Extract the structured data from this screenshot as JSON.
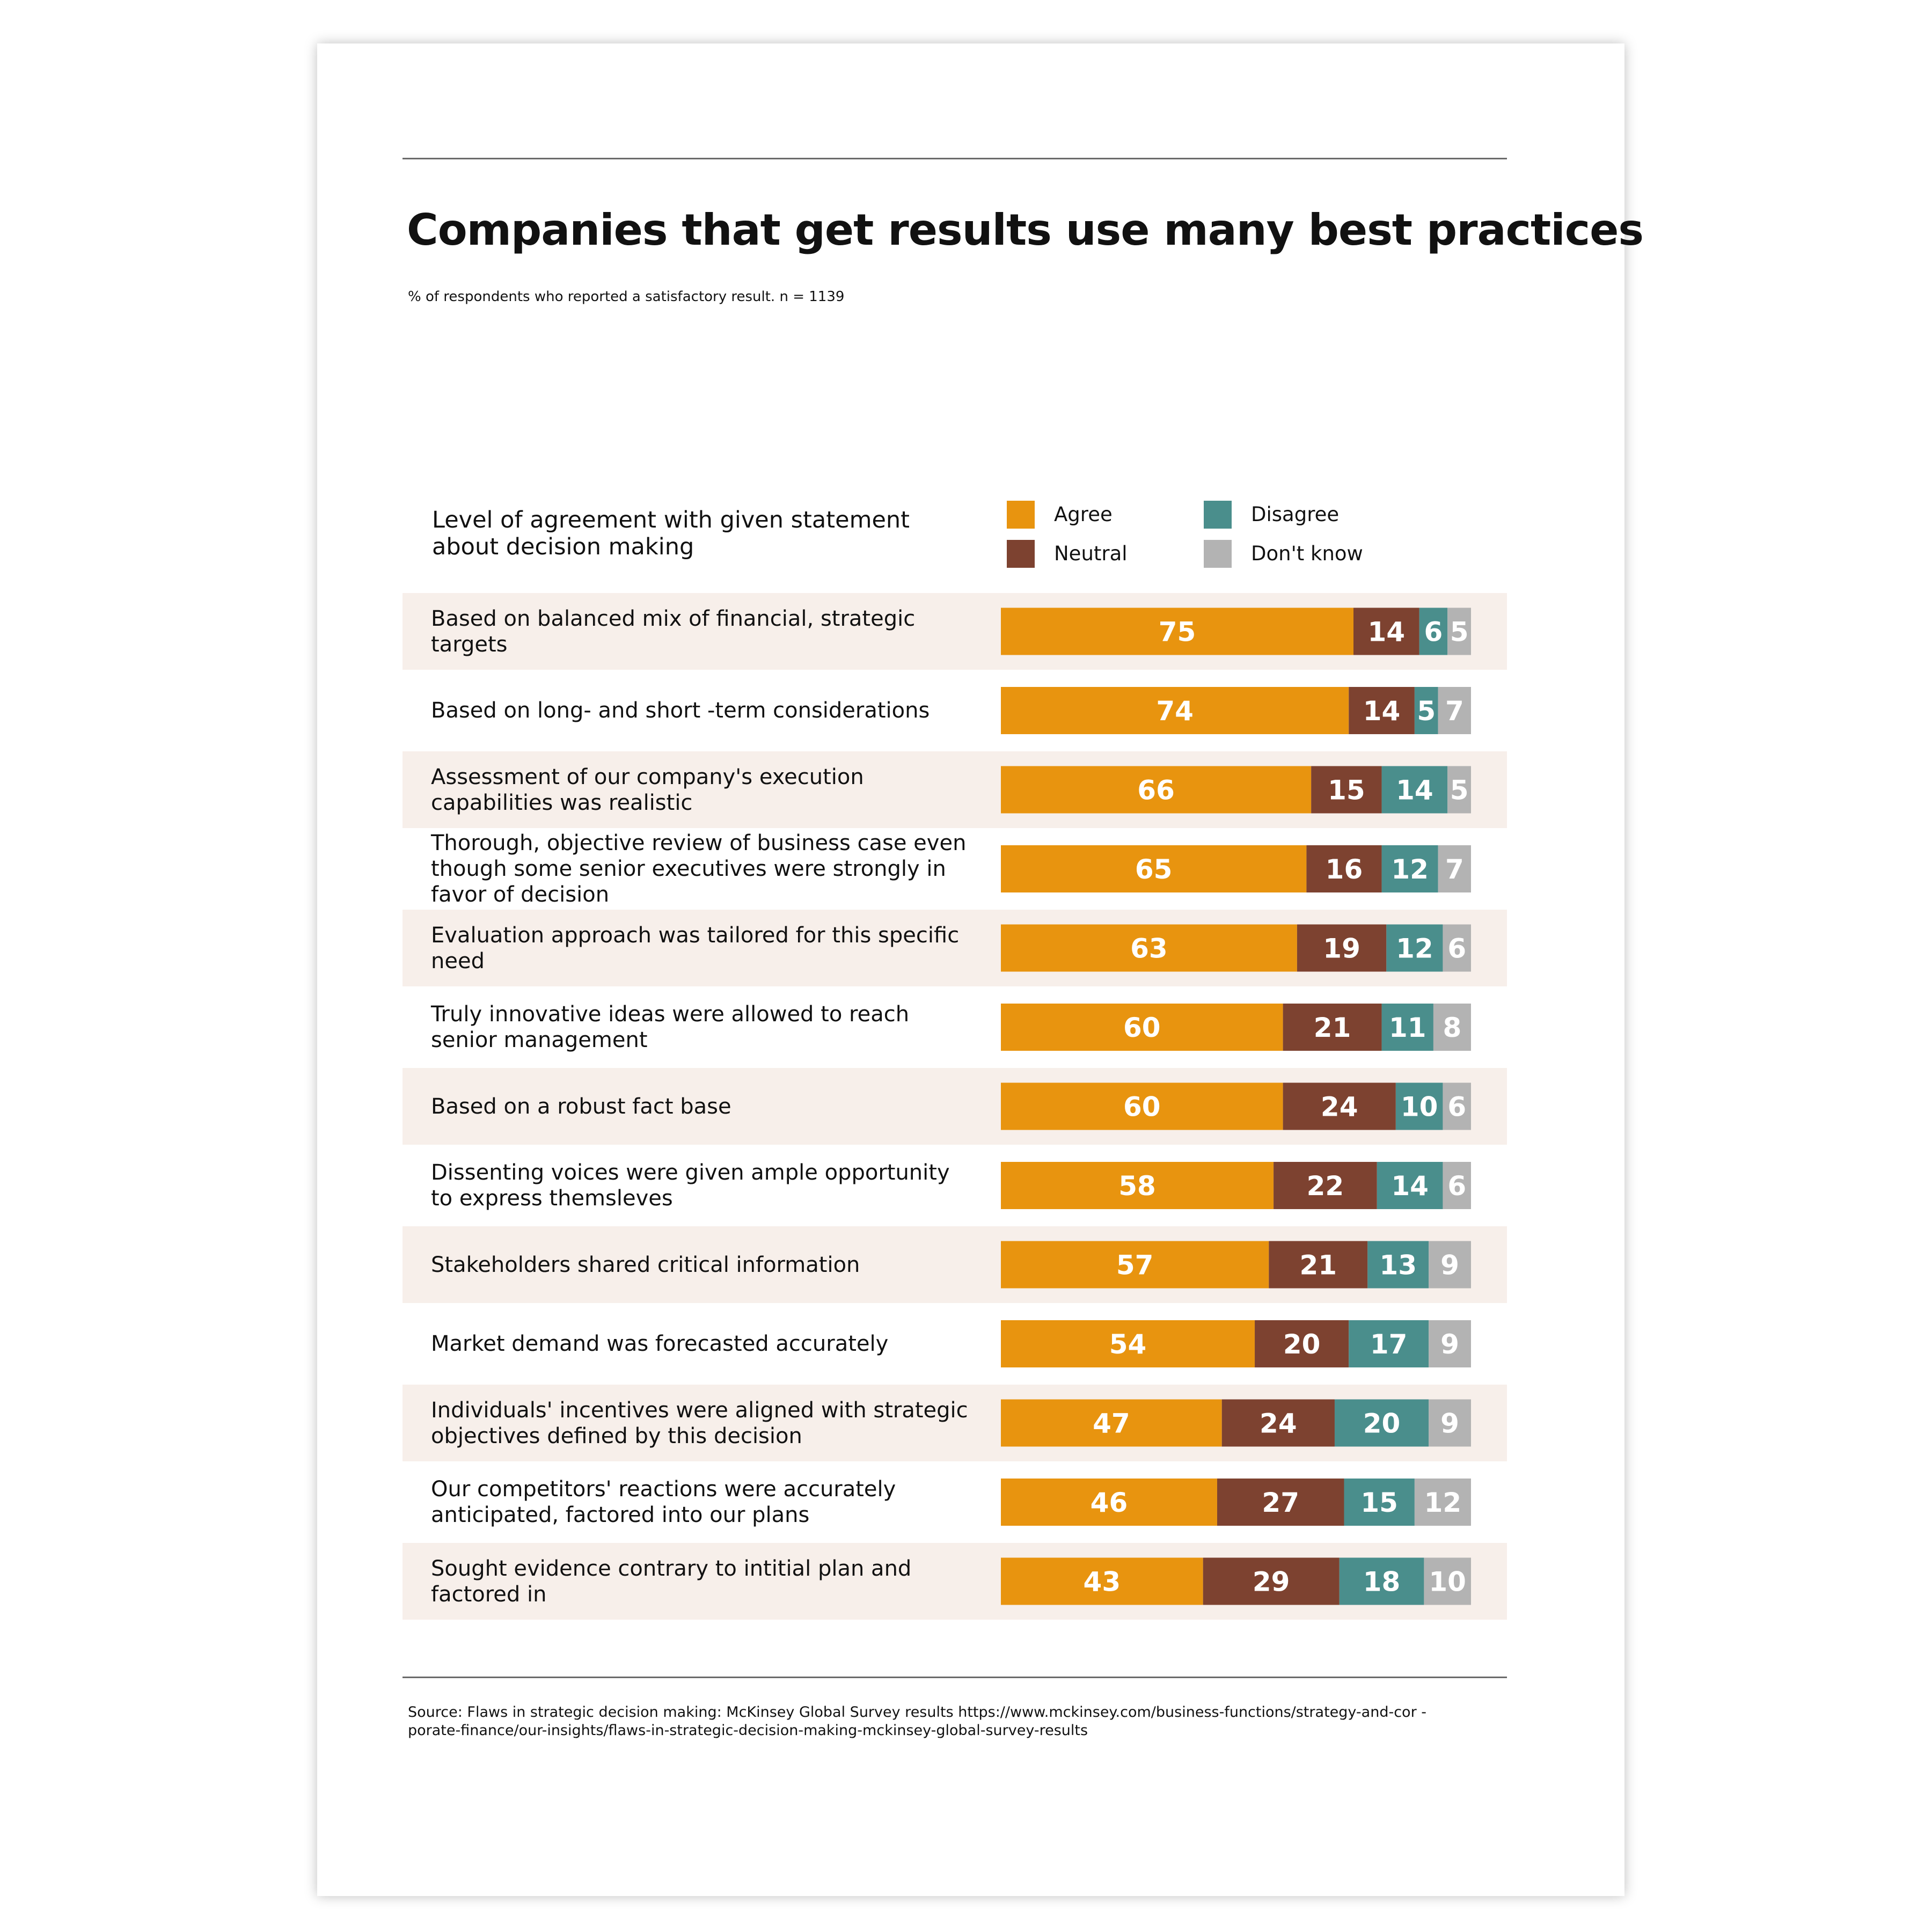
{
  "chart_data": {
    "type": "bar",
    "orientation": "horizontal",
    "stacked": true,
    "title": "Companies that get results use many best practices",
    "subtitle": "% of respondents who reported a satisfactory result. n = 1139",
    "row_header": "Level of agreement with given statement about decision making",
    "categories": [
      "Based on balanced mix of financial, strategic targets",
      "Based on long- and short -term considerations",
      "Assessment of our company's execution capabilities was realistic",
      "Thorough, objective review of business case even though some senior executives were strongly in favor of decision",
      "Evaluation approach was tailored for this specific need",
      "Truly innovative ideas were allowed to reach senior management",
      "Based on a robust fact base",
      "Dissenting voices were given ample opportunity to express themsleves",
      "Stakeholders shared critical information",
      "Market demand was forecasted accurately",
      "Individuals' incentives were aligned with strategic objectives defined by this decision",
      "Our competitors' reactions were accurately anticipated, factored into our plans",
      "Sought evidence contrary to intitial plan and factored in"
    ],
    "series": [
      {
        "name": "Agree",
        "color": "#e8940f",
        "values": [
          75,
          74,
          66,
          65,
          63,
          60,
          60,
          58,
          57,
          54,
          47,
          46,
          43
        ]
      },
      {
        "name": "Neutral",
        "color": "#7d4230",
        "values": [
          14,
          14,
          15,
          16,
          19,
          21,
          24,
          22,
          21,
          20,
          24,
          27,
          29
        ]
      },
      {
        "name": "Disagree",
        "color": "#4a8e8c",
        "values": [
          6,
          5,
          14,
          12,
          12,
          11,
          10,
          14,
          13,
          17,
          20,
          15,
          18
        ]
      },
      {
        "name": "Don't know",
        "color": "#b3b3b3",
        "values": [
          5,
          7,
          5,
          7,
          6,
          8,
          6,
          6,
          9,
          9,
          9,
          12,
          10
        ]
      }
    ],
    "xlim": [
      0,
      100
    ],
    "legend": "top-right",
    "source": "Source: Flaws in strategic decision making: McKinsey Global Survey results https://www.mckinsey.com/business-functions/strategy-and-cor - porate-finance/our-insights/flaws-in-strategic-decision-making-mckinsey-global-survey-results"
  }
}
